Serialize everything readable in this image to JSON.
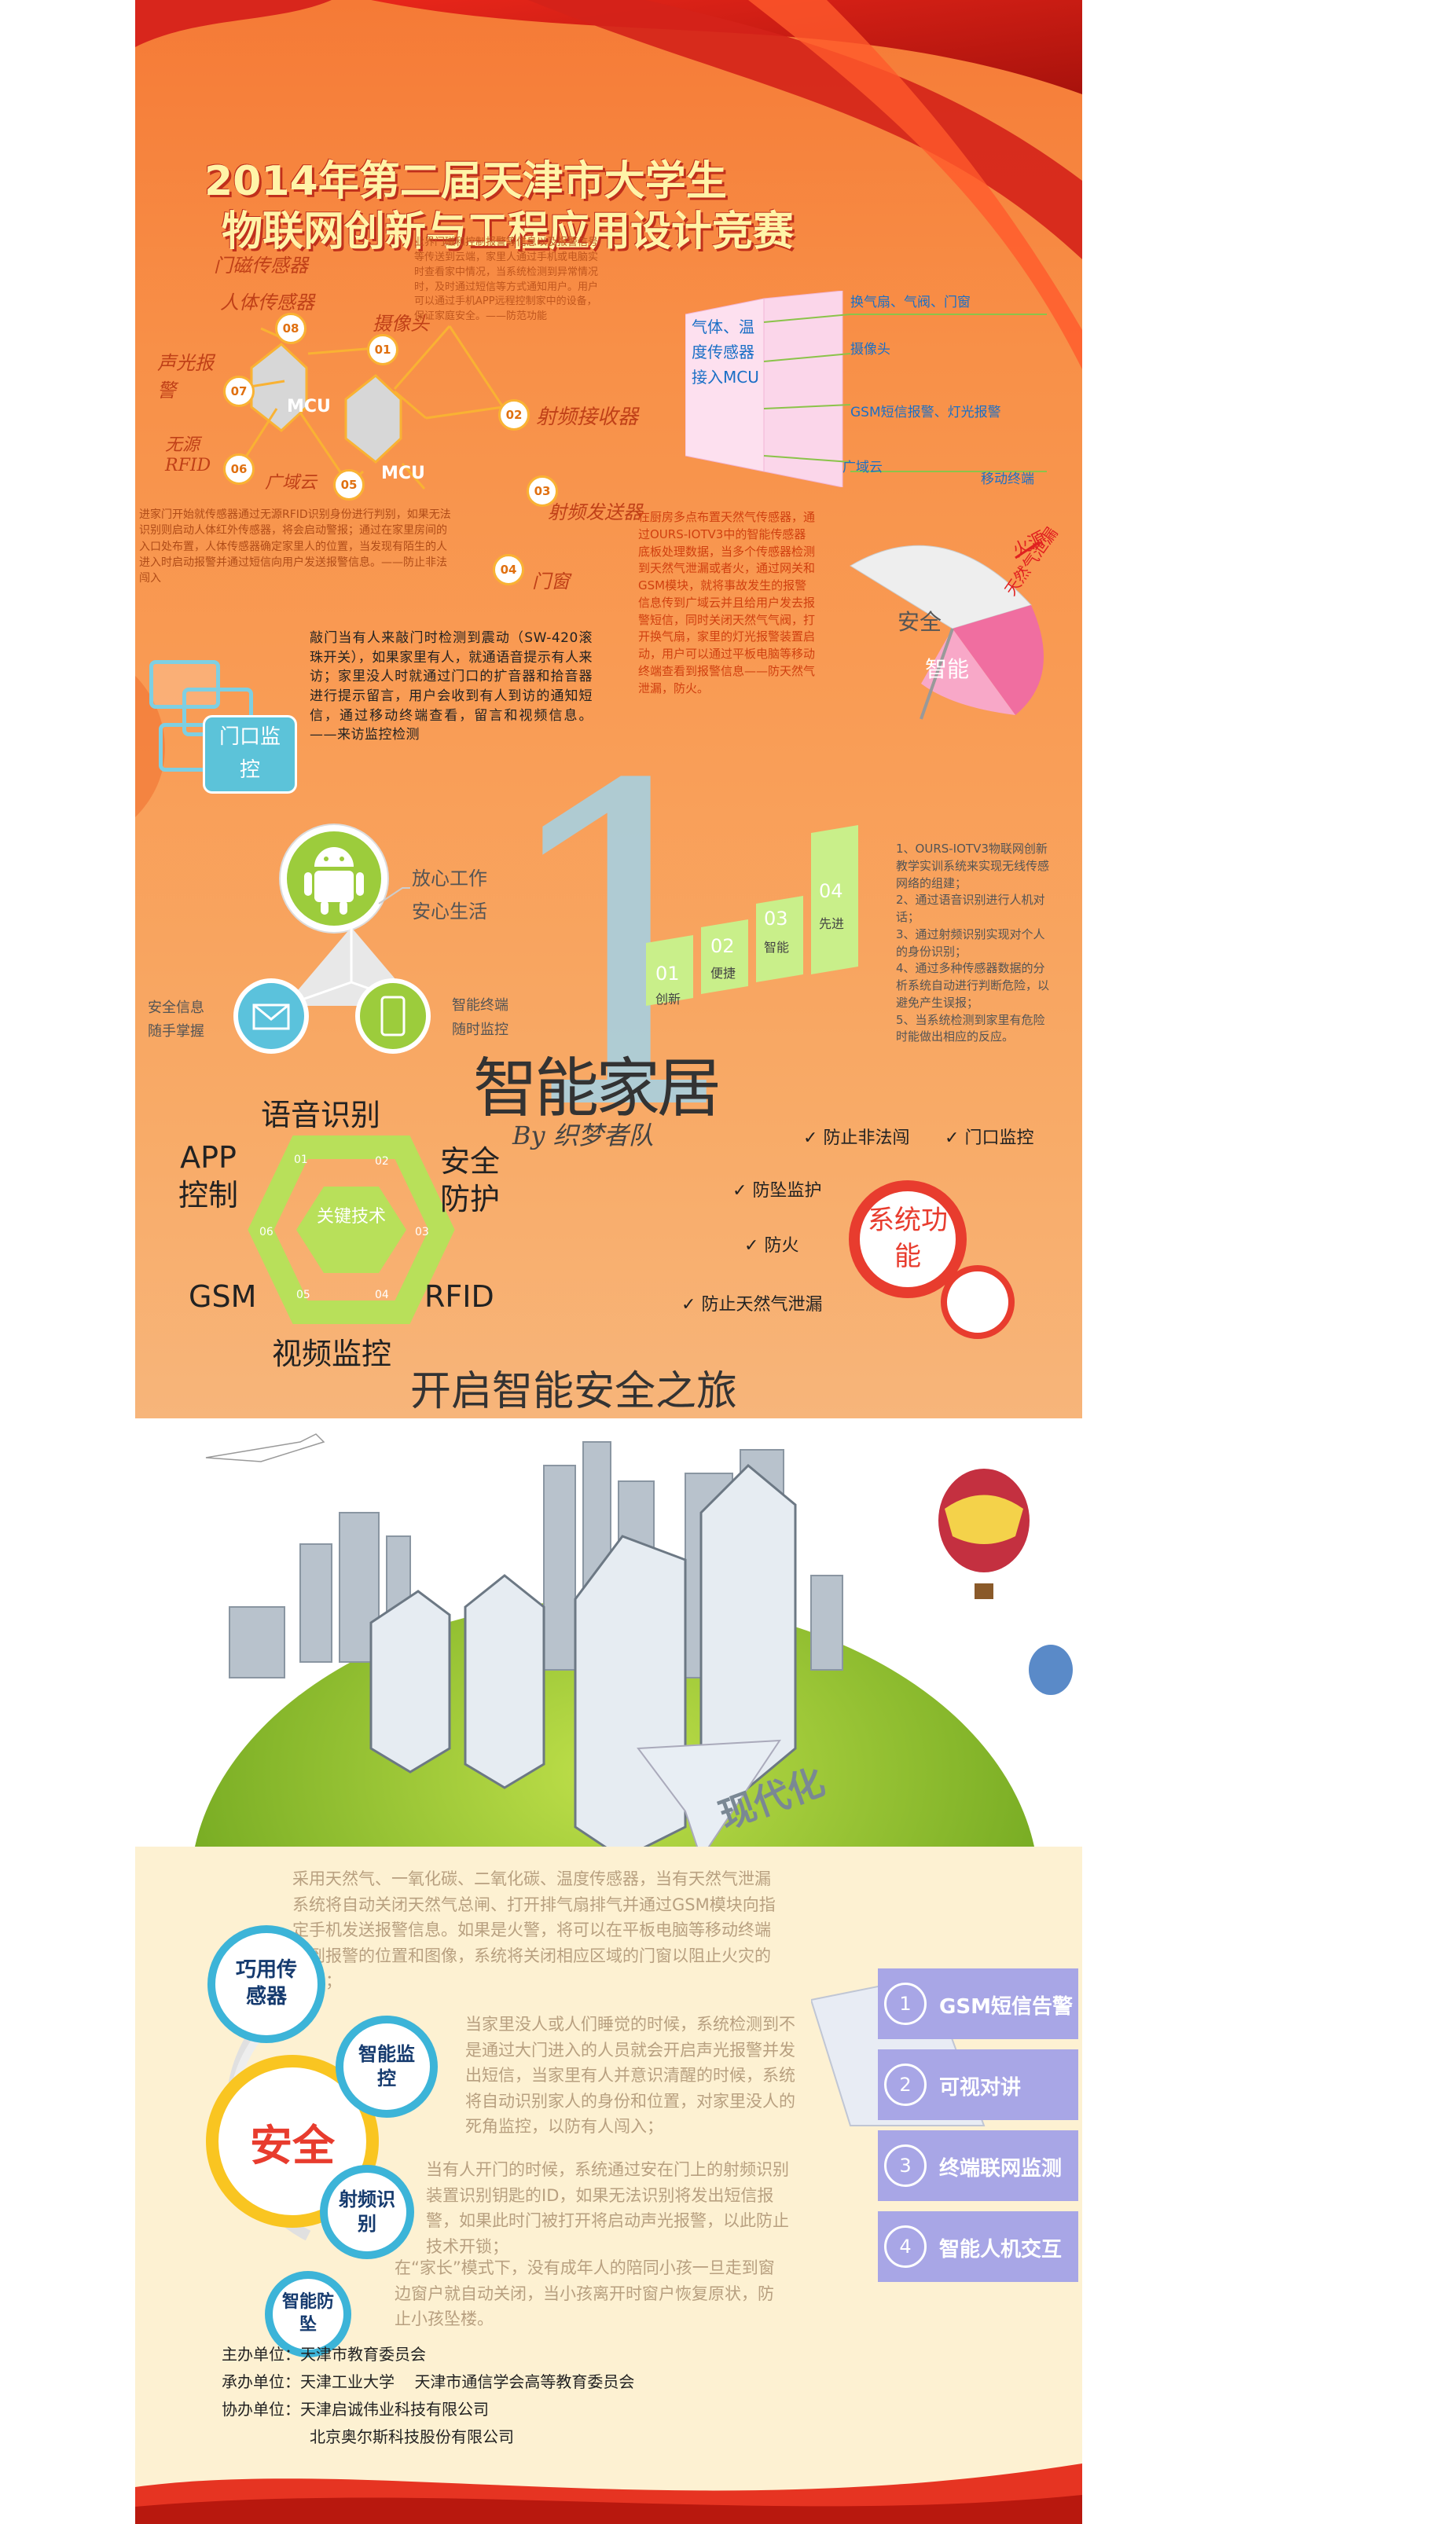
{
  "title": {
    "line1": "2014年第二届天津市大学生",
    "line2": "物联网创新与工程应用设计竞赛"
  },
  "network": {
    "labels": [
      "门磁传感器",
      "人体传感器",
      "摄像头",
      "声光报警",
      "无源RFID",
      "广域云",
      "射频接收器",
      "射频发送器",
      "门窗"
    ],
    "hubs": [
      "MCU",
      "MCU"
    ],
    "nodes": [
      "01",
      "02",
      "03",
      "04",
      "05",
      "06",
      "07",
      "08"
    ]
  },
  "para_top": "业界门磁和控制报警等信息以及报警信号等传送到云端，家里人通过手机或电脑实时查看家中情况，当系统检测到异常情况时，及时通过短信等方式通知用户。用户可以通过手机APP远程控制家中的设备，保证家庭安全。——防范功能",
  "gas": {
    "left": "气体、温度传感器接入MCU",
    "right": [
      "换气扇、气阀、门窗",
      "摄像头",
      "GSM短信报警、灯光报警",
      "广域云"
    ],
    "bottom": "移动终端"
  },
  "para_left": "进家门开始就传感器通过无源RFID识别身份进行判别，如果无法识别则启动人体红外传感器，将会启动警报；通过在家里房间的入口处布置，人体传感器确定家里人的位置，当发现有陌生的人进入时启动报警并通过短信向用户发送报警信息。——防止非法闯入",
  "door": {
    "text": "敲门当有人来敲门时检测到震动（SW-420滚珠开关），如果家里有人，就通语音提示有人来访；家里没人时就通过门口的扩音器和拾音器进行提示留言，用户会收到有人到访的通知短信，通过移动终端查看，留言和视频信息。——来访监控检测",
    "label": "门口监控"
  },
  "gas_para": "在厨房多点布置天然气传感器，通过OURS-IOTV3中的智能传感器底板处理数据，当多个传感器检测到天然气泄漏或者火，通过网关和GSM模块，就将事故发生的报警信息传到广域云并且给用户发去报警短信，同时关闭天然气气阀，打开换气扇，家里的灯光报警装置启动，用户可以通过平板电脑等移动终端查看到报警信息——防天然气泄漏，防火。",
  "umbrella": {
    "a": "安全",
    "b": "智能",
    "fire": "火源",
    "gas": "天然气泄漏"
  },
  "android": {
    "text1": "放心工作",
    "text2": "安心生活",
    "left1": "安全信息",
    "left2": "随手掌握",
    "right1": "智能终端",
    "right2": "随时监控"
  },
  "steps": [
    {
      "num": "01",
      "label": "创新"
    },
    {
      "num": "02",
      "label": "便捷"
    },
    {
      "num": "03",
      "label": "智能"
    },
    {
      "num": "04",
      "label": "先进"
    }
  ],
  "steps_para": "1、OURS-IOTV3物联网创新教学实训系统来实现无线传感网络的组建；\n2、通过语音识别进行人机对话；\n3、通过射频识别实现对个人的身份识别；\n4、通过多种传感器数据的分析系统自动进行判断危险，以避免产生误报；\n5、当系统检测到家里有危险时能做出相应的反应。",
  "big_number": "1",
  "smart_home": "智能家居",
  "by": "By 织梦者队",
  "hexagon": {
    "center": "关键技术",
    "labels": [
      "语音识别",
      "安全防护",
      "RFID",
      "视频监控",
      "GSM",
      "APP控制"
    ],
    "nums": [
      "01",
      "02",
      "03",
      "04",
      "05",
      "06"
    ]
  },
  "functions": {
    "circle": "系统功能",
    "items": [
      "防止非法闯",
      "门口监控",
      "防坠监护",
      "防火",
      "防止天然气泄漏"
    ]
  },
  "slogan": "开启智能安全之旅",
  "modern": "现代化",
  "bottom_paras": [
    "采用天然气、一氧化碳、二氧化碳、温度传感器，当有天然气泄漏系统将自动关闭天然气总闸、打开排气扇排气并通过GSM模块向指定手机发送报警信息。如果是火警，将可以在平板电脑等移动终端看到报警的位置和图像，系统将关闭相应区域的门窗以阻止火灾的扩大；",
    "当家里没人或人们睡觉的时候，系统检测到不是通过大门进入的人员就会开启声光报警并发出短信，当家里有人并意识清醒的时候，系统将自动识别家人的身份和位置，对家里没人的死角监控，以防有人闯入；",
    "当有人开门的时候，系统通过安在门上的射频识别装置识别钥匙的ID，如果无法识别将发出短信报警，如果此时门被打开将启动声光报警，以此防止技术开锁；",
    "在“家长”模式下，没有成年人的陪同小孩一旦走到窗边窗户就自动关闭，当小孩离开时窗户恢复原状，防止小孩坠楼。"
  ],
  "bubbles": {
    "center": "安全",
    "b1": "巧用传感器",
    "b2": "智能监控",
    "b3": "射频识别",
    "b4": "智能防坠"
  },
  "features": [
    {
      "num": "1",
      "label": "GSM短信告警"
    },
    {
      "num": "2",
      "label": "可视对讲"
    },
    {
      "num": "3",
      "label": "终端联网监测"
    },
    {
      "num": "4",
      "label": "智能人机交互"
    }
  ],
  "organizers": {
    "host_label": "主办单位：",
    "host": "天津市教育委员会",
    "undertake_label": "承办单位：",
    "undertake1": "天津工业大学",
    "undertake2": "天津市通信学会高等教育委员会",
    "assist_label": "协办单位：",
    "assist1": "天津启诚伟业科技有限公司",
    "assist2": "北京奥尔斯科技股份有限公司"
  }
}
